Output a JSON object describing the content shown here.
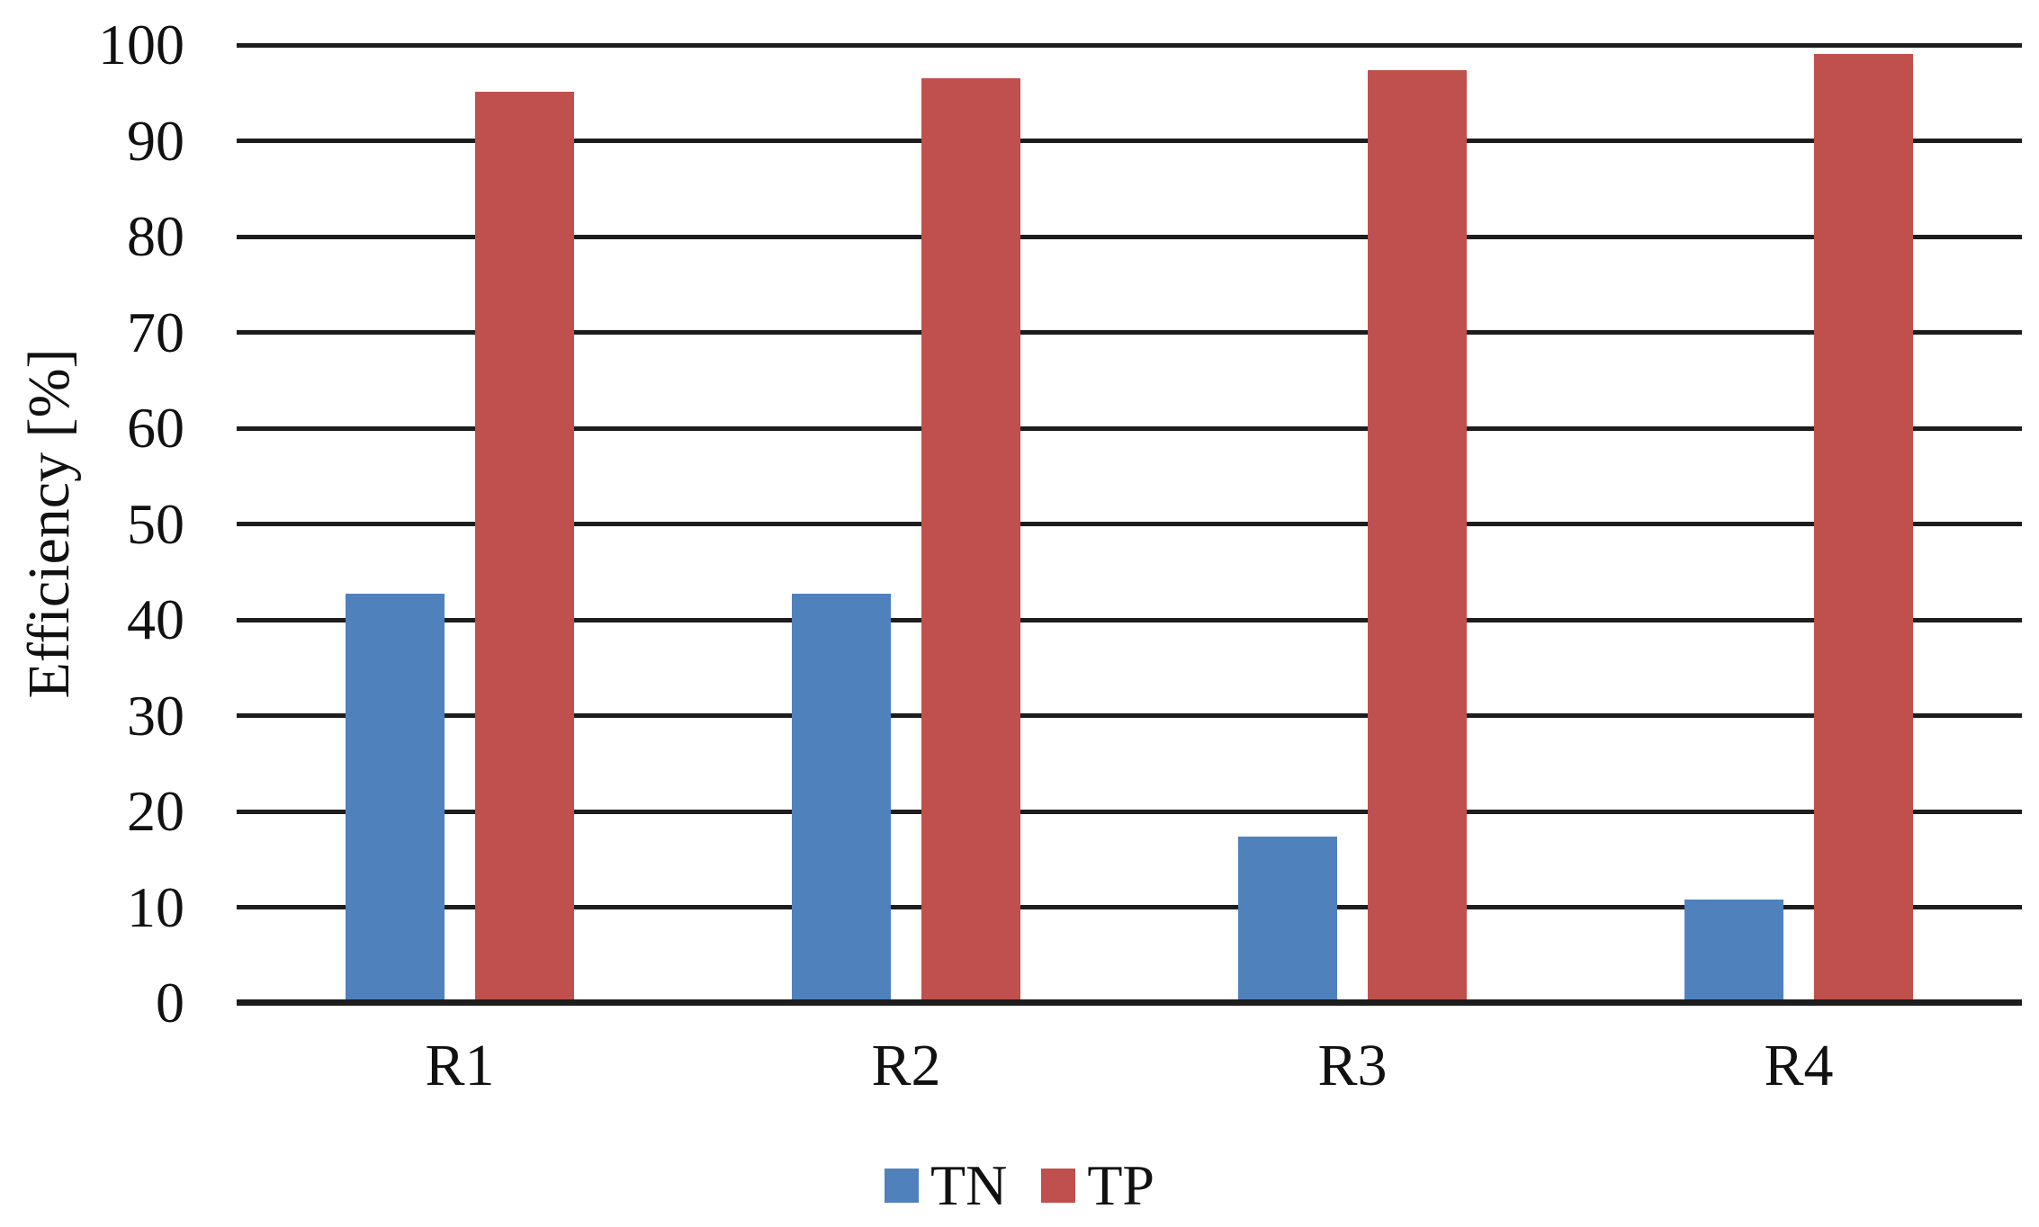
{
  "chart_data": {
    "type": "bar",
    "ylabel": "Efficiency [%]",
    "categories": [
      "R1",
      "R2",
      "R3",
      "R4"
    ],
    "series": [
      {
        "name": "TN",
        "color": "#4F81BD",
        "values": [
          42.7,
          42.7,
          17.4,
          10.8
        ]
      },
      {
        "name": "TP",
        "color": "#C0504D",
        "values": [
          95.1,
          96.5,
          97.4,
          99.1
        ]
      }
    ],
    "ylim": [
      0,
      100
    ],
    "yticks": [
      0,
      10,
      20,
      30,
      40,
      50,
      60,
      70,
      80,
      90,
      100
    ],
    "grid": "horizontal",
    "legend_position": "bottom",
    "gridline_color": "#1D1D1D",
    "axis_color": "#1D1D1D",
    "text_color": "#111111",
    "background": "#FFFFFF"
  }
}
